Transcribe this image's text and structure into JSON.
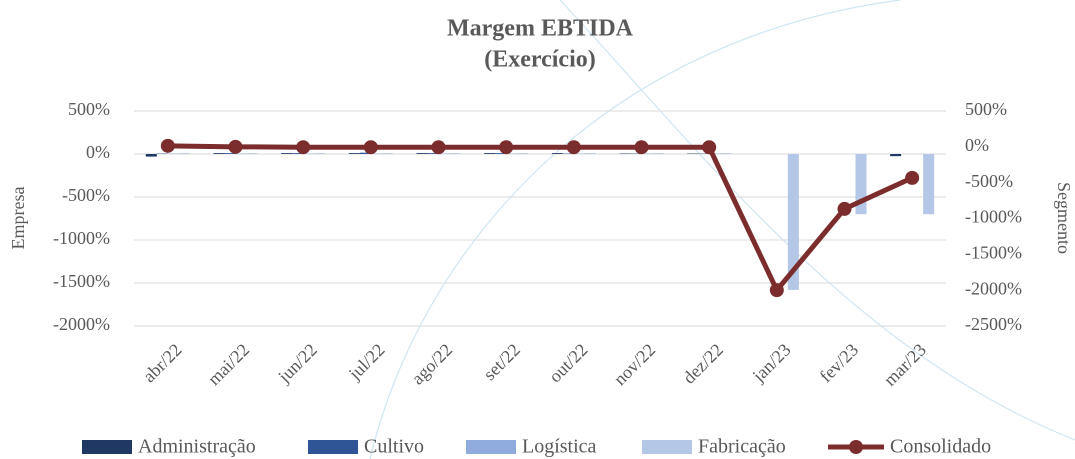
{
  "chart_data": {
    "type": "bar_line",
    "title": "Margem EBTIDA",
    "subtitle": "(Exercício)",
    "y_label": "Empresa",
    "y2_label": "Segmento",
    "categories": [
      "abr/22",
      "mai/22",
      "jun/22",
      "jul/22",
      "ago/22",
      "set/22",
      "out/22",
      "nov/22",
      "dez/22",
      "jan/23",
      "fev/23",
      "mar/23"
    ],
    "ylim": [
      -2000,
      500
    ],
    "yticks": [
      {
        "value": 500,
        "label": "500%"
      },
      {
        "value": 0,
        "label": "0%"
      },
      {
        "value": -500,
        "label": "-500%"
      },
      {
        "value": -1000,
        "label": "-1000%"
      },
      {
        "value": -1500,
        "label": "-1500%"
      },
      {
        "value": -2000,
        "label": "-2000%"
      }
    ],
    "y2lim": [
      -2500,
      500
    ],
    "y2ticks": [
      {
        "value": 500,
        "label": "500%"
      },
      {
        "value": 0,
        "label": "0%"
      },
      {
        "value": -500,
        "label": "-500%"
      },
      {
        "value": -1000,
        "label": "-1000%"
      },
      {
        "value": -1500,
        "label": "-1500%"
      },
      {
        "value": -2000,
        "label": "-2000%"
      },
      {
        "value": -2500,
        "label": "-2500%"
      }
    ],
    "grid": true,
    "series": [
      {
        "name": "Administração",
        "type": "bar",
        "color": "#1f3864",
        "values": [
          -30,
          10,
          10,
          10,
          10,
          10,
          10,
          5,
          5,
          0,
          0,
          -25
        ]
      },
      {
        "name": "Cultivo",
        "type": "bar",
        "color": "#2f5597",
        "values": [
          5,
          10,
          10,
          15,
          10,
          10,
          5,
          5,
          5,
          0,
          0,
          0
        ]
      },
      {
        "name": "Logística",
        "type": "bar",
        "color": "#8faadc",
        "values": [
          5,
          5,
          5,
          5,
          5,
          5,
          5,
          5,
          5,
          0,
          0,
          0
        ]
      },
      {
        "name": "Fabricação",
        "type": "bar",
        "color": "#b4c7e7",
        "values": [
          10,
          10,
          10,
          10,
          10,
          10,
          10,
          10,
          10,
          -1580,
          -700,
          -700
        ]
      },
      {
        "name": "Consolidado",
        "type": "line",
        "axis": "y2",
        "color": "#7b2c2c",
        "values": [
          14,
          0,
          -5,
          -5,
          -5,
          -5,
          -5,
          -5,
          -5,
          -2000,
          -866,
          -433
        ]
      }
    ]
  }
}
